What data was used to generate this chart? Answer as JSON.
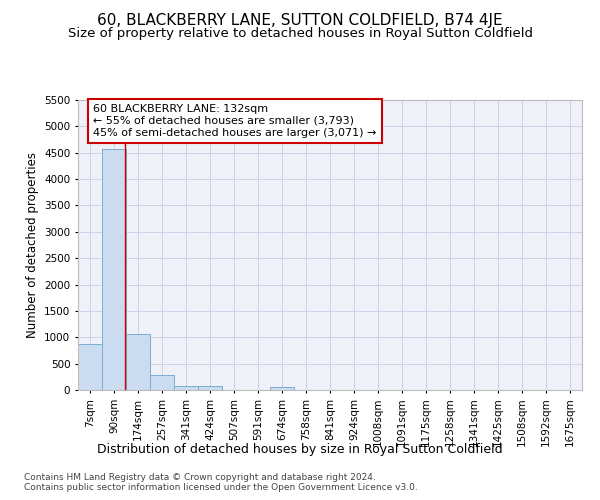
{
  "title": "60, BLACKBERRY LANE, SUTTON COLDFIELD, B74 4JE",
  "subtitle": "Size of property relative to detached houses in Royal Sutton Coldfield",
  "xlabel": "Distribution of detached houses by size in Royal Sutton Coldfield",
  "ylabel": "Number of detached properties",
  "footnote1": "Contains HM Land Registry data © Crown copyright and database right 2024.",
  "footnote2": "Contains public sector information licensed under the Open Government Licence v3.0.",
  "bin_labels": [
    "7sqm",
    "90sqm",
    "174sqm",
    "257sqm",
    "341sqm",
    "424sqm",
    "507sqm",
    "591sqm",
    "674sqm",
    "758sqm",
    "841sqm",
    "924sqm",
    "1008sqm",
    "1091sqm",
    "1175sqm",
    "1258sqm",
    "1341sqm",
    "1425sqm",
    "1508sqm",
    "1592sqm",
    "1675sqm"
  ],
  "bar_values": [
    880,
    4570,
    1060,
    280,
    80,
    80,
    0,
    0,
    55,
    0,
    0,
    0,
    0,
    0,
    0,
    0,
    0,
    0,
    0,
    0,
    0
  ],
  "bar_color": "#ccdcf0",
  "bar_edge_color": "#7aadd4",
  "grid_color": "#c8d4e8",
  "background_color": "#eef2f8",
  "vline_x": 1.47,
  "vline_color": "#cc0000",
  "annotation_line1": "60 BLACKBERRY LANE: 132sqm",
  "annotation_line2": "← 55% of detached houses are smaller (3,793)",
  "annotation_line3": "45% of semi-detached houses are larger (3,071) →",
  "annotation_box_color": "#cc0000",
  "ylim": [
    0,
    5500
  ],
  "yticks": [
    0,
    500,
    1000,
    1500,
    2000,
    2500,
    3000,
    3500,
    4000,
    4500,
    5000,
    5500
  ],
  "title_fontsize": 11,
  "subtitle_fontsize": 9.5,
  "ylabel_fontsize": 8.5,
  "xlabel_fontsize": 9,
  "tick_fontsize": 7.5,
  "annotation_fontsize": 8,
  "footnote_fontsize": 6.5
}
